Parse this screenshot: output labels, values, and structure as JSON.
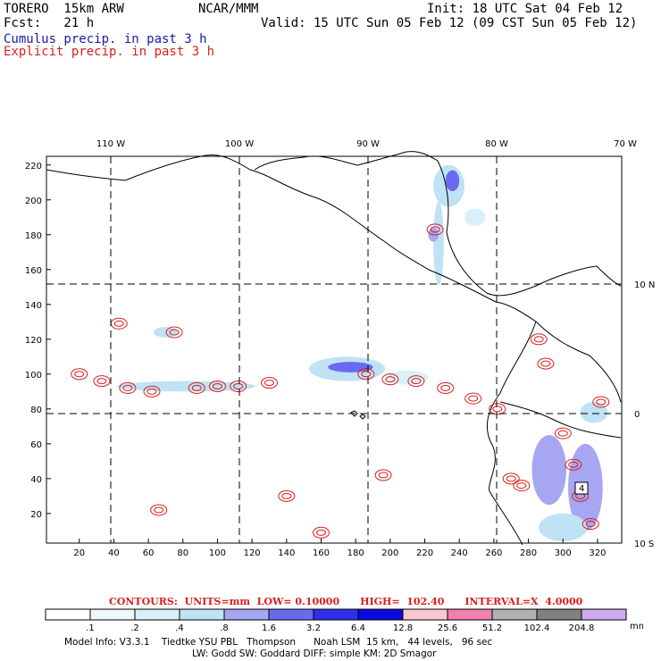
{
  "header": {
    "model": "TORERO  15km ARW",
    "org": "NCAR/MMM",
    "init": "Init: 18 UTC Sat 04 Feb 12",
    "fcst": "Fcst:   21 h",
    "valid": "Valid: 15 UTC Sun 05 Feb 12 (09 CST Sun 05 Feb 12)",
    "cumulus_label": "Cumulus precip. in past 3 h",
    "explicit_label": "Explicit precip. in past 3 h"
  },
  "colors": {
    "cumulus_text": "#1a1aa6",
    "explicit_text": "#d81e1e",
    "coast": "#000000",
    "contour": "#d81e1e"
  },
  "chart_data": {
    "type": "map",
    "top_longitude_labels": [
      "110 W",
      "100 W",
      "90 W",
      "80 W",
      "70 W"
    ],
    "right_latitude_labels": [
      "10 N",
      "0",
      "10 S"
    ],
    "x_axis_ticks": [
      "20",
      "40",
      "60",
      "80",
      "100",
      "120",
      "140",
      "160",
      "180",
      "200",
      "220",
      "240",
      "260",
      "280",
      "300",
      "320"
    ],
    "y_axis_ticks": [
      "20",
      "40",
      "60",
      "80",
      "100",
      "120",
      "140",
      "160",
      "180",
      "200",
      "220"
    ],
    "x_range": [
      1,
      334
    ],
    "y_range": [
      3,
      225
    ],
    "meridians_lon_w": [
      110,
      100,
      90,
      80
    ],
    "parallels_lat": [
      10,
      0
    ],
    "max_marker": "4",
    "precip_areas": [
      {
        "name": "caribbean-north",
        "level": 3,
        "x": 234,
        "y": 208,
        "rx": 9,
        "ry": 12
      },
      {
        "name": "caribbean-north-core",
        "level": 5,
        "x": 236,
        "y": 211,
        "rx": 4,
        "ry": 6
      },
      {
        "name": "caribbean-east",
        "level": 2,
        "x": 249,
        "y": 190,
        "rx": 6,
        "ry": 5
      },
      {
        "name": "panama-column",
        "level": 3,
        "x": 228,
        "y": 175,
        "rx": 3,
        "ry": 24
      },
      {
        "name": "honduras-cell",
        "level": 4,
        "x": 225,
        "y": 180,
        "rx": 3,
        "ry": 4
      },
      {
        "name": "itcz-west",
        "level": 3,
        "x": 82,
        "y": 93,
        "rx": 40,
        "ry": 3
      },
      {
        "name": "itcz-central-band",
        "level": 3,
        "x": 175,
        "y": 103,
        "rx": 22,
        "ry": 7
      },
      {
        "name": "itcz-central-core",
        "level": 5,
        "x": 177,
        "y": 104,
        "rx": 13,
        "ry": 3
      },
      {
        "name": "itcz-east",
        "level": 2,
        "x": 210,
        "y": 98,
        "rx": 12,
        "ry": 4
      },
      {
        "name": "west-cells",
        "level": 3,
        "x": 70,
        "y": 124,
        "rx": 7,
        "ry": 3
      },
      {
        "name": "amazon-west",
        "level": 4,
        "x": 292,
        "y": 45,
        "rx": 10,
        "ry": 20
      },
      {
        "name": "amazon-east",
        "level": 4,
        "x": 313,
        "y": 35,
        "rx": 10,
        "ry": 25
      },
      {
        "name": "amazon-south",
        "level": 3,
        "x": 300,
        "y": 12,
        "rx": 14,
        "ry": 8
      },
      {
        "name": "amazon-north",
        "level": 3,
        "x": 318,
        "y": 78,
        "rx": 8,
        "ry": 6
      }
    ],
    "contour_units": "mm",
    "contour_note": "CONTOURS:  UNITS=mm  LOW= 0.10000      HIGH=  102.40      INTERVAL=X  4.0000"
  },
  "legend": {
    "levels": [
      ".1",
      ".2",
      ".4",
      ".8",
      "1.6",
      "3.2",
      "6.4",
      "12.8",
      "25.6",
      "51.2",
      "102.4",
      "204.8"
    ],
    "units": "mm",
    "colors": [
      "#ffffff",
      "#eef8fb",
      "#d8f0f7",
      "#bfe2f4",
      "#a6a6f3",
      "#6a6af0",
      "#3030ec",
      "#0a0ae0",
      "#f8c8ce",
      "#f080b0",
      "#b0b0b0",
      "#808080",
      "#d0a8f0"
    ]
  },
  "footer": {
    "line1": "Model Info: V3.3.1    Tiedtke YSU PBL   Thompson      Noah LSM  15 km,   44 levels,   96 sec",
    "line2": "LW: Godd SW: Goddard DIFF: simple KM: 2D Smagor"
  }
}
